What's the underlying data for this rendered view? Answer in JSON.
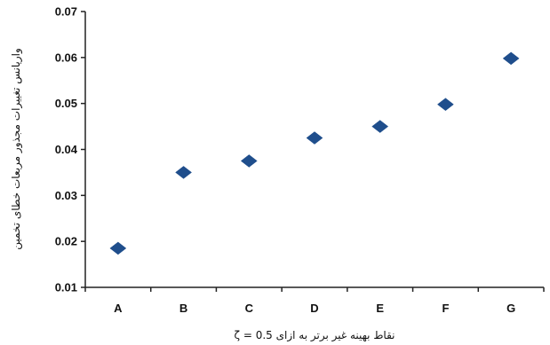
{
  "chart_data": {
    "type": "scatter",
    "categories": [
      "A",
      "B",
      "C",
      "D",
      "E",
      "F",
      "G"
    ],
    "values": [
      0.0185,
      0.035,
      0.0375,
      0.0425,
      0.045,
      0.0498,
      0.0598
    ],
    "ylim": [
      0.01,
      0.07
    ],
    "yticks": [
      "0.01",
      "0.02",
      "0.03",
      "0.04",
      "0.05",
      "0.06",
      "0.07"
    ],
    "xlabel": "نقاط بهينه غير برتر به ازاى 0.5 = ζ",
    "ylabel": "واريانس تغييرات مجذور مربعات خطاى تخمين",
    "marker_color": "#1f4e8c",
    "grid": false,
    "legend": "none"
  }
}
